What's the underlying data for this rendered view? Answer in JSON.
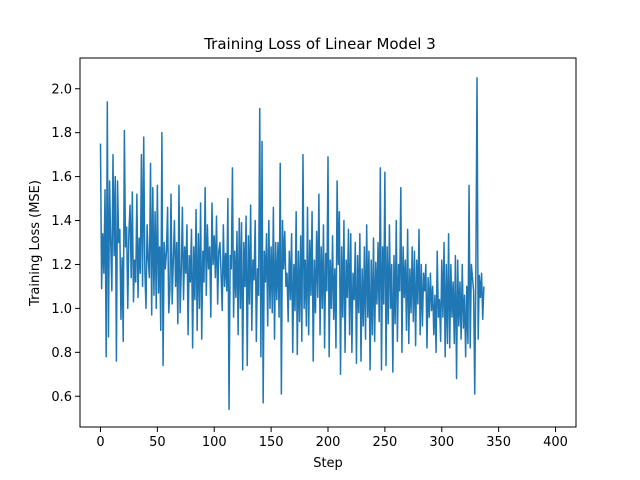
{
  "chart_data": {
    "type": "line",
    "title": "Training Loss of Linear Model 3",
    "xlabel": "Step",
    "ylabel": "Training Loss (MSE)",
    "xlim": [
      -18,
      418
    ],
    "ylim": [
      0.46,
      2.14
    ],
    "x_ticks": [
      0,
      50,
      100,
      150,
      200,
      250,
      300,
      350,
      400
    ],
    "y_ticks": [
      0.6,
      0.8,
      1.0,
      1.2,
      1.4,
      1.6,
      1.8,
      2.0
    ],
    "x_tick_labels": [
      "0",
      "50",
      "100",
      "150",
      "200",
      "250",
      "300",
      "350",
      "400"
    ],
    "y_tick_labels": [
      "0.6",
      "0.8",
      "1.0",
      "1.2",
      "1.4",
      "1.6",
      "1.8",
      "2.0"
    ],
    "grid": false,
    "series": [
      {
        "color": "#1f77b4",
        "x_start": 0,
        "x_step": 1,
        "values": [
          1.75,
          1.09,
          1.34,
          1.16,
          1.54,
          0.78,
          1.94,
          0.87,
          1.58,
          1.3,
          1.08,
          1.7,
          1.24,
          1.6,
          0.76,
          1.58,
          1.3,
          1.36,
          0.95,
          1.23,
          0.85,
          1.81,
          1.28,
          1.37,
          1.0,
          1.35,
          1.47,
          1.14,
          1.53,
          1.03,
          1.22,
          1.12,
          1.52,
          1.05,
          1.32,
          1.16,
          1.7,
          1.1,
          1.78,
          1.18,
          1.0,
          1.38,
          1.22,
          1.14,
          1.66,
          0.97,
          1.55,
          1.06,
          1.44,
          1.0,
          1.56,
          1.07,
          1.28,
          0.9,
          1.8,
          0.74,
          1.3,
          1.18,
          1.26,
          1.46,
          0.98,
          1.08,
          1.52,
          1.02,
          1.22,
          1.4,
          1.1,
          1.3,
          0.93,
          1.56,
          0.98,
          1.17,
          1.46,
          1.04,
          1.28,
          1.16,
          1.38,
          0.88,
          1.24,
          1.12,
          1.36,
          0.82,
          1.28,
          1.04,
          1.45,
          0.9,
          1.34,
          1.0,
          1.48,
          0.86,
          1.26,
          1.12,
          1.55,
          1.06,
          1.38,
          1.18,
          1.28,
          0.96,
          1.48,
          1.2,
          1.33,
          1.14,
          1.42,
          1.02,
          1.26,
          1.3,
          1.16,
          0.99,
          1.38,
          1.1,
          1.25,
          1.08,
          1.5,
          0.54,
          1.24,
          1.18,
          1.64,
          0.96,
          1.26,
          1.05,
          1.35,
          0.88,
          1.41,
          1.0,
          1.39,
          0.72,
          1.3,
          1.1,
          1.42,
          0.74,
          1.33,
          1.02,
          1.47,
          0.9,
          1.22,
          1.13,
          1.4,
          0.85,
          1.18,
          1.06,
          1.91,
          0.78,
          1.76,
          0.57,
          1.26,
          1.12,
          1.34,
          0.92,
          1.4,
          1.0,
          1.28,
          0.98,
          1.46,
          0.86,
          1.3,
          1.04,
          1.3,
          0.96,
          1.66,
          0.61,
          1.4,
          1.18,
          1.35,
          1.1,
          1.16,
          0.94,
          1.26,
          1.04,
          1.34,
          0.8,
          1.2,
          0.99,
          1.44,
          0.79,
          1.26,
          0.94,
          1.33,
          0.85,
          1.7,
          1.0,
          1.22,
          0.92,
          1.46,
          0.88,
          1.31,
          1.06,
          1.44,
          0.76,
          1.22,
          0.98,
          1.35,
          1.05,
          1.52,
          0.88,
          1.28,
          1.0,
          1.38,
          0.82,
          1.25,
          1.08,
          1.69,
          0.78,
          1.22,
          1.0,
          1.33,
          0.95,
          1.18,
          0.82,
          1.58,
          1.2,
          1.44,
          0.7,
          1.28,
          0.96,
          1.4,
          0.8,
          1.22,
          1.05,
          1.36,
          0.88,
          1.34,
          0.8,
          1.16,
          1.04,
          1.3,
          0.75,
          1.24,
          0.98,
          1.34,
          0.76,
          1.18,
          0.92,
          1.28,
          0.86,
          1.38,
          0.96,
          1.26,
          0.72,
          1.22,
          0.88,
          1.32,
          0.85,
          1.21,
          1.02,
          1.3,
          0.94,
          1.64,
          0.72,
          1.28,
          1.02,
          1.62,
          0.74,
          1.28,
          0.93,
          1.38,
          1.0,
          1.2,
          0.71,
          1.24,
          0.93,
          1.4,
          0.85,
          1.2,
          1.08,
          1.55,
          0.8,
          1.28,
          1.05,
          1.22,
          0.9,
          1.36,
          0.84,
          1.18,
          0.98,
          1.28,
          0.94,
          1.26,
          0.83,
          1.22,
          1.02,
          1.36,
          0.88,
          1.2,
          0.92,
          1.16,
          1.08,
          1.2,
          0.82,
          1.14,
          0.96,
          1.16,
          0.99,
          1.1,
          0.88,
          1.06,
          0.8,
          1.26,
          0.96,
          1.04,
          0.85,
          1.22,
          0.96,
          1.3,
          0.78,
          1.2,
          0.84,
          1.34,
          0.82,
          1.2,
          0.96,
          1.12,
          0.84,
          1.24,
          0.68,
          1.22,
          0.92,
          1.12,
          0.86,
          1.2,
          0.91,
          1.06,
          0.78,
          1.1,
          0.84,
          1.56,
          0.82,
          1.2,
          1.14,
          1.08,
          0.61,
          1.2,
          2.05,
          0.86,
          1.15,
          1.05,
          1.16,
          0.95,
          1.1
        ]
      }
    ]
  }
}
